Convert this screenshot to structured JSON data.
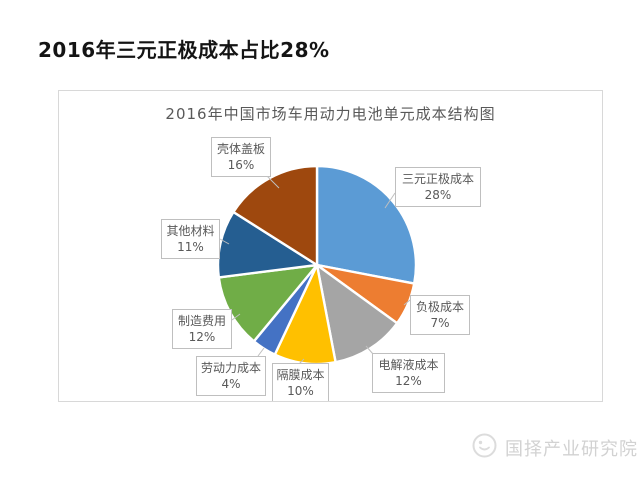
{
  "page": {
    "title": "2016年三元正极成本占比28%"
  },
  "chart_data": {
    "type": "pie",
    "title": "2016年中国市场车用动力电池单元成本结构图",
    "start_angle_deg": 0,
    "direction": "clockwise",
    "labels_style": "callout-boxes-with-leader-lines",
    "slices": [
      {
        "label": "三元正极成本",
        "value": 28,
        "pct": "28%",
        "color": "#5B9BD5"
      },
      {
        "label": "负极成本",
        "value": 7,
        "pct": "7%",
        "color": "#ED7D31"
      },
      {
        "label": "电解液成本",
        "value": 12,
        "pct": "12%",
        "color": "#A5A5A5"
      },
      {
        "label": "隔膜成本",
        "value": 10,
        "pct": "10%",
        "color": "#FFC000"
      },
      {
        "label": "劳动力成本",
        "value": 4,
        "pct": "4%",
        "color": "#4472C4"
      },
      {
        "label": "制造费用",
        "value": 12,
        "pct": "12%",
        "color": "#70AD47"
      },
      {
        "label": "其他材料",
        "value": 11,
        "pct": "11%",
        "color": "#255E91"
      },
      {
        "label": "壳体盖板",
        "value": 16,
        "pct": "16%",
        "color": "#9E480E"
      }
    ]
  },
  "footer": {
    "brand": "国择产业研究院"
  }
}
